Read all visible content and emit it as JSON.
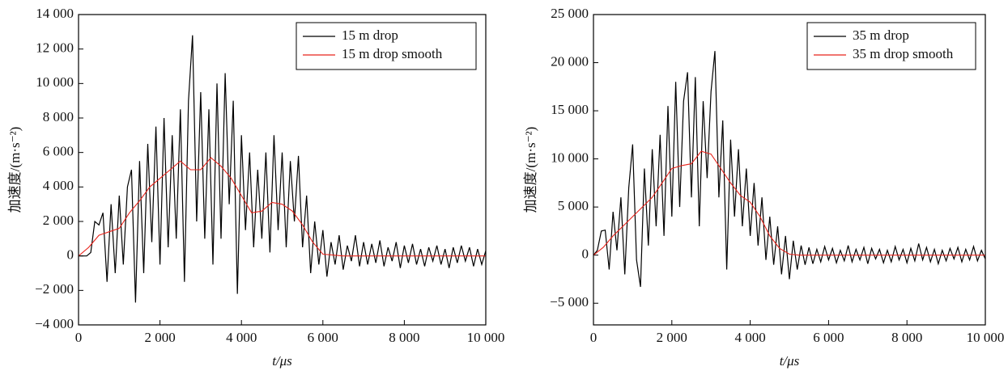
{
  "chart_data": [
    {
      "type": "line",
      "xlabel": "t/μs",
      "ylabel": "加速度/(m·s⁻²)",
      "legend": "upper right",
      "xlim": [
        0,
        10000
      ],
      "ylim": [
        -4000,
        14000
      ],
      "xticks": [
        0,
        {
          "value": 2000,
          "label": "2 000"
        },
        {
          "value": 4000,
          "label": "4 000"
        },
        {
          "value": 6000,
          "label": "6 000"
        },
        {
          "value": 8000,
          "label": "8 000"
        },
        {
          "value": 10000,
          "label": "10 000"
        }
      ],
      "yticks": [
        {
          "value": -4000,
          "label": "−4 000"
        },
        {
          "value": -2000,
          "label": "−2 000"
        },
        0,
        {
          "value": 2000,
          "label": "2 000"
        },
        {
          "value": 4000,
          "label": "4 000"
        },
        {
          "value": 6000,
          "label": "6 000"
        },
        {
          "value": 8000,
          "label": "8 000"
        },
        {
          "value": 10000,
          "label": "10 000"
        },
        {
          "value": 12000,
          "label": "12 000"
        },
        {
          "value": 14000,
          "label": "14 000"
        }
      ],
      "series": [
        {
          "name": "15 m drop",
          "color": "#000000",
          "x": [
            0,
            100,
            200,
            300,
            400,
            500,
            600,
            700,
            800,
            900,
            1000,
            1100,
            1200,
            1300,
            1400,
            1500,
            1600,
            1700,
            1800,
            1900,
            2000,
            2100,
            2200,
            2300,
            2400,
            2500,
            2600,
            2700,
            2800,
            2900,
            3000,
            3100,
            3200,
            3300,
            3400,
            3500,
            3600,
            3700,
            3800,
            3900,
            4000,
            4100,
            4200,
            4300,
            4400,
            4500,
            4600,
            4700,
            4800,
            4900,
            5000,
            5100,
            5200,
            5300,
            5400,
            5500,
            5600,
            5700,
            5800,
            5900,
            6000,
            6100,
            6200,
            6300,
            6400,
            6500,
            6600,
            6700,
            6800,
            6900,
            7000,
            7100,
            7200,
            7300,
            7400,
            7500,
            7600,
            7700,
            7800,
            7900,
            8000,
            8100,
            8200,
            8300,
            8400,
            8500,
            8600,
            8700,
            8800,
            8900,
            9000,
            9100,
            9200,
            9300,
            9400,
            9500,
            9600,
            9700,
            9800,
            9900,
            10000
          ],
          "values": [
            0,
            0,
            0,
            200,
            2000,
            1800,
            2500,
            -1500,
            3000,
            -1000,
            3500,
            -500,
            4000,
            5000,
            -2700,
            5500,
            -1000,
            6500,
            800,
            7500,
            -500,
            8000,
            500,
            7000,
            1000,
            8500,
            -1500,
            9000,
            12800,
            2000,
            9500,
            1000,
            8500,
            -500,
            10000,
            1000,
            10600,
            3000,
            9000,
            -2200,
            7000,
            1500,
            6000,
            500,
            5000,
            1000,
            6000,
            200,
            7000,
            1500,
            6000,
            500,
            5500,
            2000,
            5800,
            500,
            3500,
            -1000,
            2000,
            -500,
            1500,
            -1200,
            800,
            -500,
            1200,
            -800,
            600,
            -300,
            1200,
            -600,
            800,
            -500,
            700,
            -400,
            900,
            -600,
            500,
            -300,
            800,
            -700,
            600,
            -400,
            700,
            -500,
            400,
            -600,
            500,
            -300,
            600,
            -500,
            400,
            -700,
            500,
            -400,
            600,
            -300,
            500,
            -600,
            400,
            -500,
            300
          ]
        },
        {
          "name": "15 m drop smooth",
          "color": "#e8231b",
          "x": [
            0,
            250,
            500,
            750,
            1000,
            1250,
            1500,
            1750,
            2000,
            2250,
            2500,
            2750,
            3000,
            3250,
            3500,
            3750,
            4000,
            4250,
            4500,
            4750,
            5000,
            5250,
            5500,
            5750,
            6000,
            6500,
            7000,
            7500,
            8000,
            8500,
            9000,
            9500,
            10000
          ],
          "values": [
            0,
            500,
            1200,
            1400,
            1600,
            2500,
            3200,
            4000,
            4500,
            5000,
            5500,
            5000,
            5000,
            5700,
            5200,
            4500,
            3500,
            2500,
            2600,
            3100,
            3000,
            2600,
            1800,
            800,
            100,
            0,
            0,
            0,
            0,
            0,
            0,
            0,
            0
          ]
        }
      ]
    },
    {
      "type": "line",
      "xlabel": "t/μs",
      "ylabel": "加速度/(m·s⁻²)",
      "legend": "upper right",
      "xlim": [
        0,
        10000
      ],
      "ylim": [
        -7250,
        25000
      ],
      "xticks": [
        0,
        {
          "value": 2000,
          "label": "2 000"
        },
        {
          "value": 4000,
          "label": "4 000"
        },
        {
          "value": 6000,
          "label": "6 000"
        },
        {
          "value": 8000,
          "label": "8 000"
        },
        {
          "value": 10000,
          "label": "10 000"
        }
      ],
      "yticks": [
        {
          "value": -5000,
          "label": "−5 000"
        },
        0,
        {
          "value": 5000,
          "label": "5 000"
        },
        {
          "value": 10000,
          "label": "10 000"
        },
        {
          "value": 15000,
          "label": "15 000"
        },
        {
          "value": 20000,
          "label": "20 000"
        },
        {
          "value": 25000,
          "label": "25 000"
        }
      ],
      "series": [
        {
          "name": "35 m drop",
          "color": "#000000",
          "x": [
            0,
            100,
            200,
            300,
            400,
            500,
            600,
            700,
            800,
            900,
            1000,
            1100,
            1200,
            1300,
            1400,
            1500,
            1600,
            1700,
            1800,
            1900,
            2000,
            2100,
            2200,
            2300,
            2400,
            2500,
            2600,
            2700,
            2800,
            2900,
            3000,
            3100,
            3200,
            3300,
            3400,
            3500,
            3600,
            3700,
            3800,
            3900,
            4000,
            4100,
            4200,
            4300,
            4400,
            4500,
            4600,
            4700,
            4800,
            4900,
            5000,
            5100,
            5200,
            5300,
            5400,
            5500,
            5600,
            5700,
            5800,
            5900,
            6000,
            6100,
            6200,
            6300,
            6400,
            6500,
            6600,
            6700,
            6800,
            6900,
            7000,
            7100,
            7200,
            7300,
            7400,
            7500,
            7600,
            7700,
            7800,
            7900,
            8000,
            8100,
            8200,
            8300,
            8400,
            8500,
            8600,
            8700,
            8800,
            8900,
            9000,
            9100,
            9200,
            9300,
            9400,
            9500,
            9600,
            9700,
            9800,
            9900,
            10000
          ],
          "values": [
            0,
            500,
            2500,
            2600,
            -1500,
            4500,
            500,
            6000,
            -2000,
            7000,
            11500,
            -500,
            -3300,
            9000,
            1000,
            11000,
            3000,
            12500,
            2000,
            15500,
            4000,
            18000,
            5000,
            16000,
            19000,
            6000,
            18500,
            3000,
            16000,
            8000,
            17000,
            21200,
            6000,
            14000,
            -1500,
            12000,
            4000,
            11000,
            3000,
            9000,
            2000,
            7500,
            1000,
            6000,
            -500,
            4000,
            -1000,
            3000,
            -2000,
            2000,
            -2500,
            1500,
            -1500,
            1000,
            -1000,
            800,
            -900,
            600,
            -700,
            900,
            -500,
            700,
            -800,
            500,
            -600,
            1000,
            -700,
            600,
            -500,
            800,
            -900,
            700,
            -400,
            600,
            -800,
            500,
            -700,
            900,
            -500,
            600,
            -800,
            700,
            -600,
            1200,
            -500,
            800,
            -700,
            600,
            -900,
            500,
            -600,
            700,
            -400,
            800,
            -700,
            600,
            -500,
            900,
            -600,
            500,
            -400
          ]
        },
        {
          "name": "35 m drop smooth",
          "color": "#e8231b",
          "x": [
            0,
            250,
            500,
            750,
            1000,
            1250,
            1500,
            1750,
            2000,
            2250,
            2500,
            2750,
            3000,
            3250,
            3500,
            3750,
            4000,
            4250,
            4500,
            4750,
            5000,
            5250,
            5500,
            6000,
            6500,
            7000,
            7500,
            8000,
            8500,
            9000,
            9500,
            10000
          ],
          "values": [
            0,
            800,
            2000,
            3000,
            4000,
            5000,
            6000,
            7500,
            9000,
            9300,
            9500,
            10800,
            10500,
            9000,
            7500,
            6200,
            5500,
            4000,
            2000,
            700,
            100,
            0,
            0,
            0,
            0,
            0,
            0,
            0,
            0,
            0,
            0,
            0
          ]
        }
      ]
    }
  ]
}
